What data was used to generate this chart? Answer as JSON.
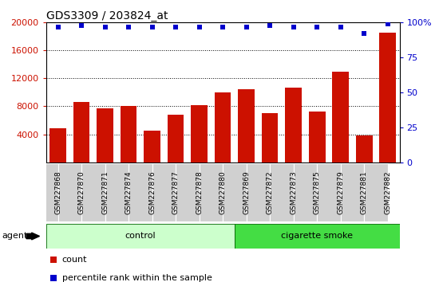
{
  "title": "GDS3309 / 203824_at",
  "samples": [
    "GSM227868",
    "GSM227870",
    "GSM227871",
    "GSM227874",
    "GSM227876",
    "GSM227877",
    "GSM227878",
    "GSM227880",
    "GSM227869",
    "GSM227872",
    "GSM227873",
    "GSM227875",
    "GSM227879",
    "GSM227881",
    "GSM227882"
  ],
  "counts": [
    4800,
    8600,
    7700,
    8100,
    4500,
    6800,
    8200,
    10000,
    10500,
    7000,
    10700,
    7200,
    13000,
    3800,
    18500
  ],
  "percentiles": [
    97,
    98,
    97,
    97,
    97,
    97,
    97,
    97,
    97,
    98,
    97,
    97,
    97,
    92,
    99
  ],
  "groups": [
    "control",
    "control",
    "control",
    "control",
    "control",
    "control",
    "control",
    "control",
    "cigarette smoke",
    "cigarette smoke",
    "cigarette smoke",
    "cigarette smoke",
    "cigarette smoke",
    "cigarette smoke",
    "cigarette smoke"
  ],
  "group_colors": {
    "control": "#ccffcc",
    "cigarette smoke": "#44dd44"
  },
  "bar_color": "#CC1100",
  "dot_color": "#0000CC",
  "ylim_left": [
    0,
    20000
  ],
  "ylim_right": [
    0,
    100
  ],
  "yticks_left": [
    4000,
    8000,
    12000,
    16000,
    20000
  ],
  "yticks_right": [
    0,
    25,
    50,
    75,
    100
  ],
  "agent_label": "agent",
  "legend_count_label": "count",
  "legend_pct_label": "percentile rank within the sample",
  "bg_color": "#ffffff",
  "tick_bg_color": "#d0d0d0"
}
